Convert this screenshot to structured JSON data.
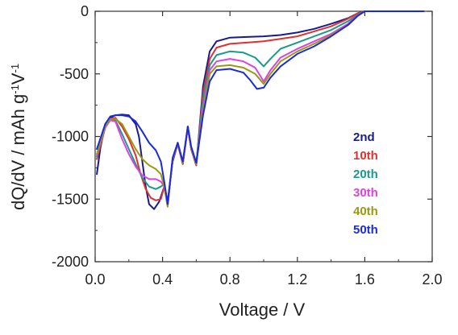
{
  "chart_data": {
    "type": "line",
    "xlabel": "Voltage / V",
    "ylabel_parts": [
      "dQ/dV / mAh g",
      "-1",
      "V",
      "-1"
    ],
    "xlim": [
      0.0,
      2.0
    ],
    "ylim": [
      -2000,
      0
    ],
    "xticks": [
      {
        "v": 0.0,
        "label": "0.0"
      },
      {
        "v": 0.4,
        "label": "0.4"
      },
      {
        "v": 0.8,
        "label": "0.8"
      },
      {
        "v": 1.2,
        "label": "1.2"
      },
      {
        "v": 1.6,
        "label": "1.6"
      },
      {
        "v": 2.0,
        "label": "2.0"
      }
    ],
    "yticks": [
      {
        "v": 0,
        "label": "0"
      },
      {
        "v": -500,
        "label": "-500"
      },
      {
        "v": -1000,
        "label": "-1000"
      },
      {
        "v": -1500,
        "label": "-1500"
      },
      {
        "v": -2000,
        "label": "-2000"
      }
    ],
    "legend_position": "middle-right",
    "series": [
      {
        "name": "2nd",
        "color": "#1a1a8c",
        "points": [
          [
            0.01,
            -1300
          ],
          [
            0.03,
            -1100
          ],
          [
            0.06,
            -900
          ],
          [
            0.09,
            -850
          ],
          [
            0.12,
            -830
          ],
          [
            0.16,
            -825
          ],
          [
            0.2,
            -830
          ],
          [
            0.24,
            -900
          ],
          [
            0.26,
            -1000
          ],
          [
            0.28,
            -1200
          ],
          [
            0.3,
            -1400
          ],
          [
            0.32,
            -1540
          ],
          [
            0.35,
            -1580
          ],
          [
            0.38,
            -1520
          ],
          [
            0.41,
            -1400
          ],
          [
            0.43,
            -1520
          ],
          [
            0.46,
            -1200
          ],
          [
            0.49,
            -1060
          ],
          [
            0.52,
            -1220
          ],
          [
            0.55,
            -930
          ],
          [
            0.57,
            -1100
          ],
          [
            0.6,
            -1230
          ],
          [
            0.64,
            -600
          ],
          [
            0.68,
            -320
          ],
          [
            0.72,
            -240
          ],
          [
            0.8,
            -210
          ],
          [
            0.9,
            -205
          ],
          [
            1.0,
            -200
          ],
          [
            1.1,
            -190
          ],
          [
            1.2,
            -170
          ],
          [
            1.3,
            -140
          ],
          [
            1.4,
            -100
          ],
          [
            1.5,
            -55
          ],
          [
            1.56,
            -15
          ],
          [
            1.6,
            0
          ],
          [
            1.7,
            0
          ],
          [
            1.8,
            0
          ],
          [
            1.95,
            0
          ]
        ]
      },
      {
        "name": "10th",
        "color": "#e03030",
        "points": [
          [
            0.01,
            -1180
          ],
          [
            0.03,
            -1080
          ],
          [
            0.06,
            -930
          ],
          [
            0.09,
            -860
          ],
          [
            0.12,
            -850
          ],
          [
            0.16,
            -920
          ],
          [
            0.2,
            -1020
          ],
          [
            0.24,
            -1150
          ],
          [
            0.27,
            -1300
          ],
          [
            0.3,
            -1420
          ],
          [
            0.33,
            -1490
          ],
          [
            0.36,
            -1510
          ],
          [
            0.39,
            -1500
          ],
          [
            0.41,
            -1400
          ],
          [
            0.43,
            -1540
          ],
          [
            0.46,
            -1190
          ],
          [
            0.49,
            -1060
          ],
          [
            0.52,
            -1220
          ],
          [
            0.55,
            -930
          ],
          [
            0.57,
            -1100
          ],
          [
            0.6,
            -1230
          ],
          [
            0.64,
            -650
          ],
          [
            0.68,
            -380
          ],
          [
            0.72,
            -290
          ],
          [
            0.8,
            -260
          ],
          [
            0.9,
            -250
          ],
          [
            1.0,
            -240
          ],
          [
            1.1,
            -220
          ],
          [
            1.2,
            -200
          ],
          [
            1.3,
            -160
          ],
          [
            1.4,
            -120
          ],
          [
            1.5,
            -60
          ],
          [
            1.56,
            -15
          ],
          [
            1.6,
            0
          ],
          [
            1.7,
            0
          ],
          [
            1.8,
            0
          ],
          [
            1.95,
            0
          ]
        ]
      },
      {
        "name": "20th",
        "color": "#1a9a8a",
        "points": [
          [
            0.01,
            -1160
          ],
          [
            0.03,
            -1060
          ],
          [
            0.06,
            -920
          ],
          [
            0.09,
            -860
          ],
          [
            0.12,
            -870
          ],
          [
            0.16,
            -980
          ],
          [
            0.2,
            -1100
          ],
          [
            0.24,
            -1220
          ],
          [
            0.28,
            -1330
          ],
          [
            0.32,
            -1400
          ],
          [
            0.36,
            -1420
          ],
          [
            0.39,
            -1400
          ],
          [
            0.41,
            -1380
          ],
          [
            0.43,
            -1550
          ],
          [
            0.46,
            -1180
          ],
          [
            0.49,
            -1050
          ],
          [
            0.52,
            -1210
          ],
          [
            0.55,
            -920
          ],
          [
            0.57,
            -1090
          ],
          [
            0.6,
            -1220
          ],
          [
            0.64,
            -700
          ],
          [
            0.68,
            -430
          ],
          [
            0.72,
            -350
          ],
          [
            0.8,
            -320
          ],
          [
            0.88,
            -330
          ],
          [
            0.95,
            -370
          ],
          [
            1.0,
            -440
          ],
          [
            1.04,
            -380
          ],
          [
            1.1,
            -300
          ],
          [
            1.2,
            -250
          ],
          [
            1.3,
            -200
          ],
          [
            1.4,
            -150
          ],
          [
            1.5,
            -80
          ],
          [
            1.56,
            -25
          ],
          [
            1.6,
            0
          ],
          [
            1.7,
            0
          ],
          [
            1.8,
            0
          ],
          [
            1.95,
            0
          ]
        ]
      },
      {
        "name": "30th",
        "color": "#e040e0",
        "points": [
          [
            0.01,
            -1150
          ],
          [
            0.03,
            -1060
          ],
          [
            0.06,
            -930
          ],
          [
            0.09,
            -870
          ],
          [
            0.12,
            -880
          ],
          [
            0.16,
            -1020
          ],
          [
            0.2,
            -1140
          ],
          [
            0.24,
            -1240
          ],
          [
            0.28,
            -1310
          ],
          [
            0.32,
            -1340
          ],
          [
            0.36,
            -1340
          ],
          [
            0.39,
            -1360
          ],
          [
            0.41,
            -1400
          ],
          [
            0.43,
            -1560
          ],
          [
            0.46,
            -1180
          ],
          [
            0.49,
            -1050
          ],
          [
            0.52,
            -1210
          ],
          [
            0.55,
            -920
          ],
          [
            0.57,
            -1090
          ],
          [
            0.6,
            -1220
          ],
          [
            0.64,
            -760
          ],
          [
            0.68,
            -470
          ],
          [
            0.72,
            -400
          ],
          [
            0.8,
            -380
          ],
          [
            0.88,
            -400
          ],
          [
            0.95,
            -450
          ],
          [
            1.0,
            -560
          ],
          [
            1.04,
            -470
          ],
          [
            1.1,
            -370
          ],
          [
            1.2,
            -300
          ],
          [
            1.3,
            -240
          ],
          [
            1.4,
            -180
          ],
          [
            1.5,
            -100
          ],
          [
            1.56,
            -30
          ],
          [
            1.6,
            0
          ],
          [
            1.7,
            0
          ],
          [
            1.8,
            0
          ],
          [
            1.95,
            0
          ]
        ]
      },
      {
        "name": "40th",
        "color": "#9a9a10",
        "points": [
          [
            0.01,
            -1140
          ],
          [
            0.03,
            -1050
          ],
          [
            0.06,
            -920
          ],
          [
            0.09,
            -860
          ],
          [
            0.12,
            -860
          ],
          [
            0.16,
            -900
          ],
          [
            0.2,
            -1000
          ],
          [
            0.24,
            -1100
          ],
          [
            0.28,
            -1180
          ],
          [
            0.32,
            -1230
          ],
          [
            0.36,
            -1260
          ],
          [
            0.39,
            -1300
          ],
          [
            0.41,
            -1400
          ],
          [
            0.43,
            -1560
          ],
          [
            0.46,
            -1180
          ],
          [
            0.49,
            -1050
          ],
          [
            0.52,
            -1210
          ],
          [
            0.55,
            -920
          ],
          [
            0.57,
            -1090
          ],
          [
            0.6,
            -1220
          ],
          [
            0.64,
            -800
          ],
          [
            0.68,
            -500
          ],
          [
            0.72,
            -440
          ],
          [
            0.8,
            -430
          ],
          [
            0.88,
            -450
          ],
          [
            0.95,
            -500
          ],
          [
            1.0,
            -580
          ],
          [
            1.04,
            -500
          ],
          [
            1.1,
            -400
          ],
          [
            1.2,
            -320
          ],
          [
            1.3,
            -260
          ],
          [
            1.4,
            -190
          ],
          [
            1.5,
            -110
          ],
          [
            1.56,
            -35
          ],
          [
            1.6,
            0
          ],
          [
            1.7,
            0
          ],
          [
            1.8,
            0
          ],
          [
            1.95,
            0
          ]
        ]
      },
      {
        "name": "50th",
        "color": "#1a2ae0",
        "points": [
          [
            0.01,
            -1100
          ],
          [
            0.03,
            -1020
          ],
          [
            0.06,
            -900
          ],
          [
            0.09,
            -840
          ],
          [
            0.12,
            -830
          ],
          [
            0.16,
            -830
          ],
          [
            0.2,
            -840
          ],
          [
            0.24,
            -880
          ],
          [
            0.28,
            -960
          ],
          [
            0.32,
            -1050
          ],
          [
            0.36,
            -1110
          ],
          [
            0.39,
            -1200
          ],
          [
            0.41,
            -1360
          ],
          [
            0.43,
            -1540
          ],
          [
            0.46,
            -1170
          ],
          [
            0.49,
            -1050
          ],
          [
            0.52,
            -1200
          ],
          [
            0.55,
            -920
          ],
          [
            0.57,
            -1080
          ],
          [
            0.6,
            -1210
          ],
          [
            0.64,
            -830
          ],
          [
            0.68,
            -560
          ],
          [
            0.72,
            -470
          ],
          [
            0.8,
            -460
          ],
          [
            0.88,
            -490
          ],
          [
            0.92,
            -550
          ],
          [
            0.96,
            -620
          ],
          [
            1.0,
            -610
          ],
          [
            1.04,
            -530
          ],
          [
            1.1,
            -440
          ],
          [
            1.2,
            -340
          ],
          [
            1.3,
            -280
          ],
          [
            1.4,
            -200
          ],
          [
            1.5,
            -110
          ],
          [
            1.56,
            -35
          ],
          [
            1.6,
            0
          ],
          [
            1.7,
            0
          ],
          [
            1.8,
            0
          ],
          [
            1.95,
            0
          ]
        ]
      }
    ]
  }
}
